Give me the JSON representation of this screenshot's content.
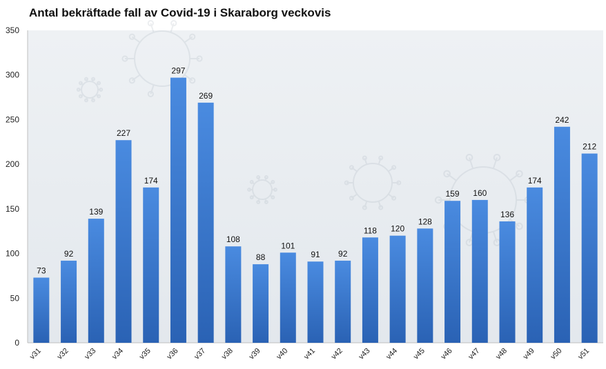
{
  "chart_data": {
    "type": "bar",
    "title": "Antal bekräftade fall av Covid-19 i Skaraborg veckovis",
    "xlabel": "",
    "ylabel": "",
    "ylim": [
      0,
      350
    ],
    "yticks": [
      "0",
      "50",
      "100",
      "150",
      "200",
      "250",
      "300",
      "350"
    ],
    "categories": [
      "v31",
      "v32",
      "v33",
      "v34",
      "v35",
      "v36",
      "v37",
      "v38",
      "v39",
      "v40",
      "v41",
      "v42",
      "v43",
      "v44",
      "v45",
      "v46",
      "v47",
      "v48",
      "v49",
      "v50",
      "v51"
    ],
    "values": [
      73,
      92,
      139,
      227,
      174,
      297,
      269,
      108,
      88,
      101,
      91,
      92,
      118,
      120,
      128,
      159,
      160,
      136,
      174,
      242,
      212
    ],
    "grid": false,
    "legend": "none",
    "colors": {
      "bar_top": "#4a8be0",
      "bar_bottom": "#2a62b4",
      "background_top": "#eef1f4",
      "background_bottom": "#e3e8ed"
    }
  }
}
